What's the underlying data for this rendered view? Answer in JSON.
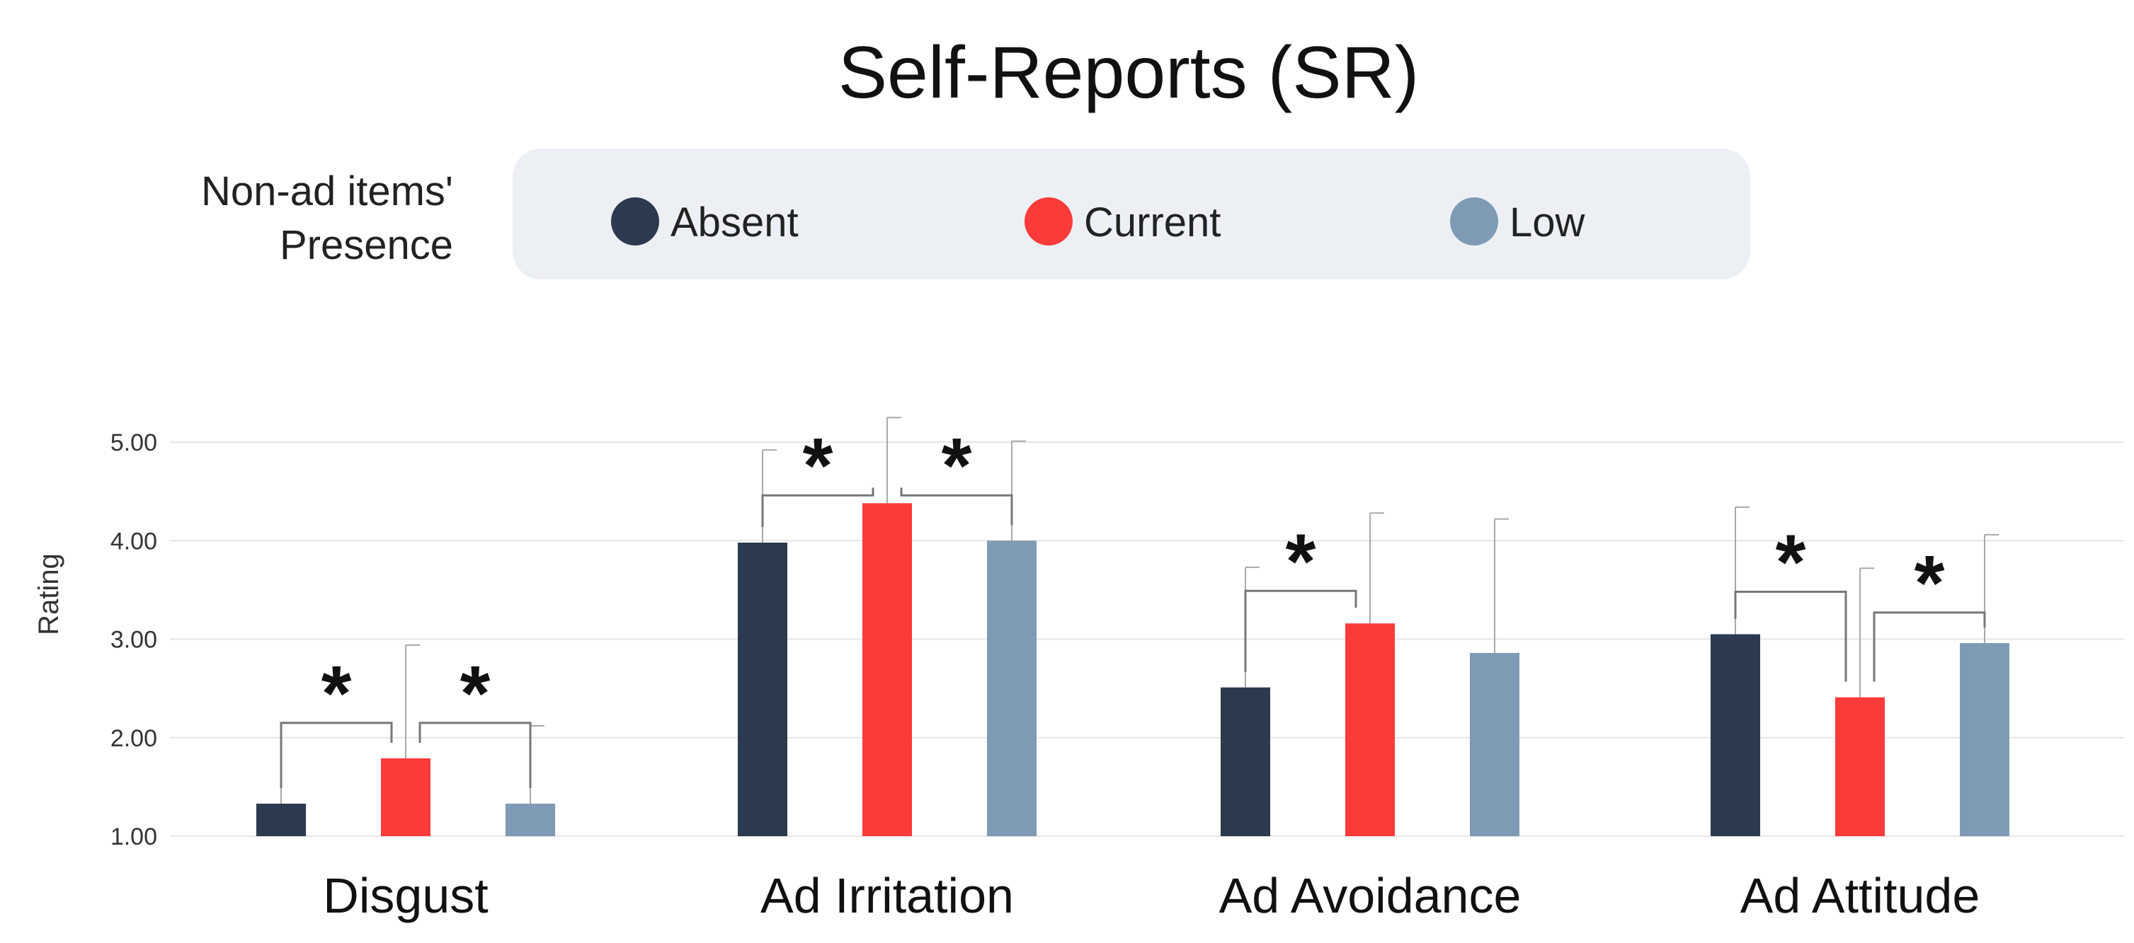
{
  "chart_data": {
    "type": "bar",
    "title": "Self-Reports (SR)",
    "legend_title": [
      "Non-ad items'",
      "Presence"
    ],
    "legend_position": "top",
    "ylabel": "Rating",
    "xlabel": "",
    "ylim": [
      1,
      5
    ],
    "yticks": [
      1,
      2,
      3,
      4,
      5
    ],
    "ytick_labels": [
      "1.00",
      "2.00",
      "3.00",
      "4.00",
      "5.00"
    ],
    "grid": true,
    "categories": [
      "Disgust",
      "Ad Irritation",
      "Ad Avoidance",
      "Ad Attitude"
    ],
    "series": [
      {
        "name": "Absent",
        "color": "#2b3a4e",
        "values": [
          1.33,
          3.98,
          2.51,
          3.05
        ],
        "error_upper": [
          2.15,
          4.92,
          3.73,
          4.34
        ]
      },
      {
        "name": "Current",
        "color": "#fb3a3a",
        "values": [
          1.79,
          4.38,
          3.16,
          2.41
        ],
        "error_upper": [
          2.94,
          5.25,
          4.28,
          3.72
        ]
      },
      {
        "name": "Low",
        "color": "#7e9ab5",
        "values": [
          1.33,
          4.0,
          2.86,
          2.96
        ],
        "error_upper": [
          2.12,
          5.01,
          4.22,
          4.06
        ]
      }
    ],
    "significance": [
      {
        "category": 0,
        "from": 0,
        "to": 1,
        "label": "*"
      },
      {
        "category": 0,
        "from": 1,
        "to": 2,
        "label": "*"
      },
      {
        "category": 1,
        "from": 0,
        "to": 1,
        "label": "*"
      },
      {
        "category": 1,
        "from": 1,
        "to": 2,
        "label": "*"
      },
      {
        "category": 2,
        "from": 0,
        "to": 1,
        "label": "*"
      },
      {
        "category": 3,
        "from": 0,
        "to": 1,
        "label": "*"
      },
      {
        "category": 3,
        "from": 1,
        "to": 2,
        "label": "*"
      }
    ]
  }
}
